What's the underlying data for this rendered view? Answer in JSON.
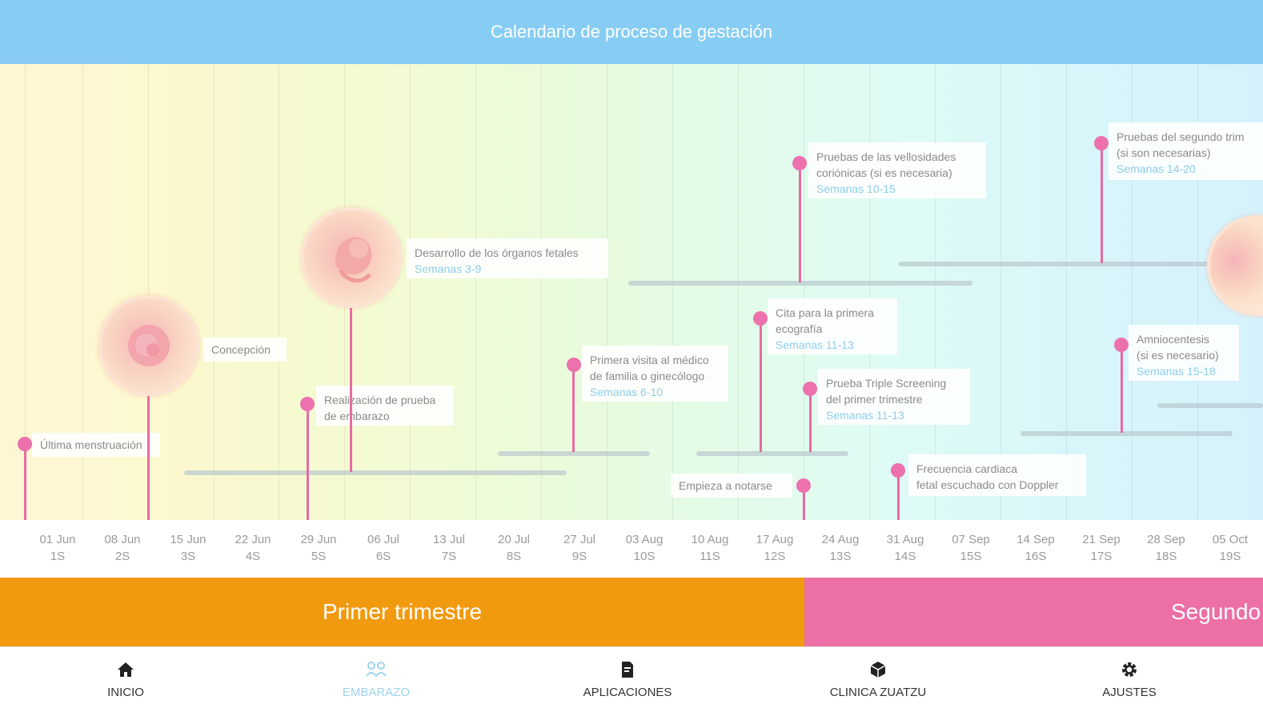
{
  "header": {
    "title": "Calendario de proceso de gestación"
  },
  "axis": {
    "ticks": [
      {
        "date": "01 Jun",
        "week": "1S"
      },
      {
        "date": "08 Jun",
        "week": "2S"
      },
      {
        "date": "15 Jun",
        "week": "3S"
      },
      {
        "date": "22 Jun",
        "week": "4S"
      },
      {
        "date": "29 Jun",
        "week": "5S"
      },
      {
        "date": "06 Jul",
        "week": "6S"
      },
      {
        "date": "13 Jul",
        "week": "7S"
      },
      {
        "date": "20 Jul",
        "week": "8S"
      },
      {
        "date": "27 Jul",
        "week": "9S"
      },
      {
        "date": "03 Aug",
        "week": "10S"
      },
      {
        "date": "10 Aug",
        "week": "11S"
      },
      {
        "date": "17 Aug",
        "week": "12S"
      },
      {
        "date": "24 Aug",
        "week": "13S"
      },
      {
        "date": "31 Aug",
        "week": "14S"
      },
      {
        "date": "07 Sep",
        "week": "15S"
      },
      {
        "date": "14 Sep",
        "week": "16S"
      },
      {
        "date": "21 Sep",
        "week": "17S"
      },
      {
        "date": "28 Sep",
        "week": "18S"
      },
      {
        "date": "05 Oct",
        "week": "19S"
      }
    ]
  },
  "events": {
    "ultima": {
      "title": "Última menstruación"
    },
    "concepcion": {
      "title": "Concepción",
      "icon": "cell-illustration-icon"
    },
    "prueba_embarazo": {
      "line1": "Realización de prueba",
      "line2": "de embarazo"
    },
    "organos": {
      "title": "Desarrollo de los órganos fetales",
      "weeks": "Semanas 3-9",
      "icon": "embryo-illustration-icon"
    },
    "primera_visita": {
      "line1": "Primera visita al médico",
      "line2": "de familia o ginecólogo",
      "weeks": "Semanas 6-10"
    },
    "velosidades": {
      "line1": "Pruebas de las vellosidades",
      "line2": "coriónicas (si es necesaria)",
      "weeks": "Semanas 10-15"
    },
    "ecografia": {
      "line1": "Cita para la primera",
      "line2": "ecografía",
      "weeks": "Semanas 11-13"
    },
    "triple": {
      "line1": "Prueba Triple Screening",
      "line2": "del primer trimestre",
      "weeks": "Semanas 11-13"
    },
    "notarse": {
      "title": "Empieza a notarse"
    },
    "doppler": {
      "line1": "Frecuencia cardiaca",
      "line2": "fetal escuchado con Doppler"
    },
    "segundo_trim": {
      "line1": "Pruebas del segundo trim",
      "line2": "(si son necesarias)",
      "weeks": "Semanas 14-20",
      "icon": "fetus-illustration-icon"
    },
    "amnio": {
      "line1": "Amniocentesis",
      "line2": "(si es necesario)",
      "weeks": "Semanas 15-18"
    }
  },
  "trimesters": [
    {
      "label": "Primer trimestre",
      "color": "#f29a0f"
    },
    {
      "label": "Segundo",
      "color": "#ec6fa6"
    }
  ],
  "nav": {
    "items": [
      {
        "label": "INICIO",
        "icon": "home-icon"
      },
      {
        "label": "EMBARAZO",
        "icon": "pregnancy-icon",
        "active": true
      },
      {
        "label": "APLICACIONES",
        "icon": "apps-document-icon"
      },
      {
        "label": "CLINICA ZUATZU",
        "icon": "clinic-box-icon"
      },
      {
        "label": "AJUSTES",
        "icon": "gear-icon"
      }
    ]
  },
  "colors": {
    "header": "#87cdf3",
    "accent": "#ec71ad",
    "weeks_text": "#8fcde8"
  }
}
